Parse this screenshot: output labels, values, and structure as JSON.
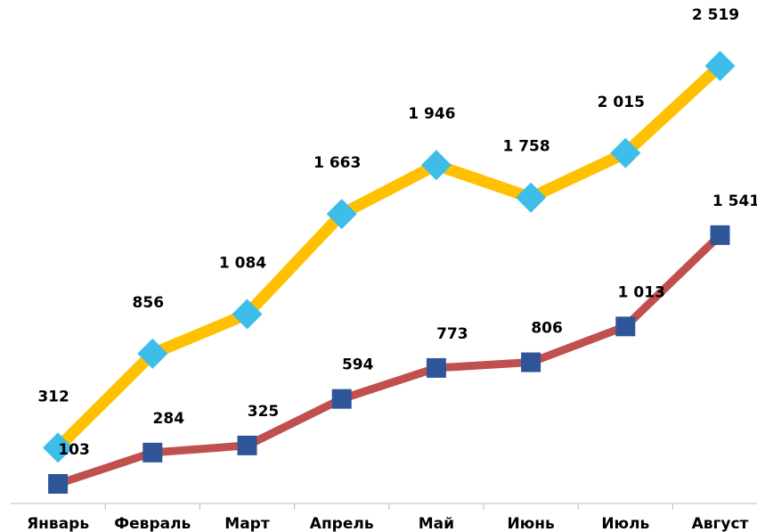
{
  "chart_data": {
    "type": "line",
    "categories": [
      "Январь",
      "Февраль",
      "Март",
      "Апрель",
      "Май",
      "Июнь",
      "Июль",
      "Август"
    ],
    "series": [
      {
        "color": "#ffc000",
        "marker_color": "#3dbde8",
        "marker": "diamond",
        "values": [
          312,
          856,
          1084,
          1663,
          1946,
          1758,
          2015,
          2519
        ],
        "value_labels": [
          "312",
          "856",
          "1 084",
          "1 663",
          "1 946",
          "1 758",
          "2 015",
          "2 519"
        ]
      },
      {
        "color": "#c0504d",
        "marker_color": "#2e5597",
        "marker": "square",
        "values": [
          103,
          284,
          325,
          594,
          773,
          806,
          1013,
          1541
        ],
        "value_labels": [
          "103",
          "284",
          "325",
          "594",
          "773",
          "806",
          "1 013",
          "1 541"
        ]
      }
    ],
    "ylim": [
      0,
      2900
    ]
  }
}
